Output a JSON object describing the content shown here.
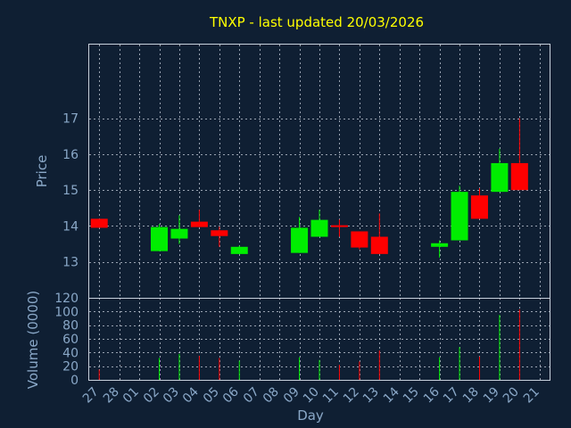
{
  "chart_data": {
    "type": "candlestick",
    "title": "TNXP - last updated 20/03/2026",
    "xlabel": "Day",
    "grid": true,
    "price_panel": {
      "ylabel": "Price",
      "yticks": [
        13,
        14,
        15,
        16,
        17
      ],
      "ylim": [
        12,
        19.05
      ]
    },
    "volume_panel": {
      "ylabel": "Volume (0000)",
      "yticks": [
        0,
        20,
        40,
        60,
        80,
        100,
        120
      ],
      "ylim": [
        0,
        120
      ]
    },
    "x": [
      "27",
      "28",
      "01",
      "02",
      "03",
      "04",
      "05",
      "06",
      "07",
      "08",
      "09",
      "10",
      "11",
      "12",
      "13",
      "14",
      "15",
      "16",
      "17",
      "18",
      "19",
      "20",
      "21"
    ],
    "colors": {
      "up": "#00ee00",
      "down": "#ff0000"
    },
    "candles": [
      {
        "day": "27",
        "open": 14.2,
        "close": 13.95,
        "high": 14.2,
        "low": 13.95,
        "volume": 15
      },
      {
        "day": "02",
        "open": 13.3,
        "close": 13.97,
        "high": 14.05,
        "low": 13.3,
        "volume": 32
      },
      {
        "day": "03",
        "open": 13.65,
        "close": 13.92,
        "high": 14.3,
        "low": 13.5,
        "volume": 38
      },
      {
        "day": "04",
        "open": 14.12,
        "close": 13.97,
        "high": 14.45,
        "low": 13.97,
        "volume": 35
      },
      {
        "day": "05",
        "open": 13.88,
        "close": 13.72,
        "high": 13.98,
        "low": 13.42,
        "volume": 32
      },
      {
        "day": "06",
        "open": 13.22,
        "close": 13.42,
        "high": 13.45,
        "low": 13.22,
        "volume": 28
      },
      {
        "day": "09",
        "open": 13.25,
        "close": 13.95,
        "high": 14.25,
        "low": 13.25,
        "volume": 33
      },
      {
        "day": "10",
        "open": 13.7,
        "close": 14.17,
        "high": 14.45,
        "low": 13.7,
        "volume": 29
      },
      {
        "day": "11",
        "open": 14.02,
        "close": 13.97,
        "high": 14.18,
        "low": 13.7,
        "volume": 22
      },
      {
        "day": "12",
        "open": 13.85,
        "close": 13.4,
        "high": 13.85,
        "low": 13.35,
        "volume": 27
      },
      {
        "day": "13",
        "open": 13.7,
        "close": 13.22,
        "high": 14.35,
        "low": 13.22,
        "volume": 43
      },
      {
        "day": "16",
        "open": 13.42,
        "close": 13.52,
        "high": 13.6,
        "low": 13.12,
        "volume": 33
      },
      {
        "day": "17",
        "open": 13.6,
        "close": 14.95,
        "high": 15.12,
        "low": 13.6,
        "volume": 48
      },
      {
        "day": "18",
        "open": 14.85,
        "close": 14.2,
        "high": 15.05,
        "low": 14.2,
        "volume": 34
      },
      {
        "day": "19",
        "open": 14.95,
        "close": 15.75,
        "high": 16.15,
        "low": 14.95,
        "volume": 95
      },
      {
        "day": "20",
        "open": 15.75,
        "close": 15.0,
        "high": 17.0,
        "low": 15.0,
        "volume": 103
      }
    ]
  }
}
